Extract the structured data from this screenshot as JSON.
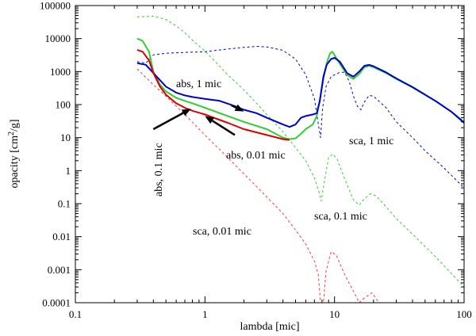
{
  "chart_data": {
    "type": "line",
    "title": "",
    "xlabel": "lambda [mic]",
    "ylabel_parts": [
      "opacity [cm",
      "2",
      "/g]"
    ],
    "xscale": "log",
    "yscale": "log",
    "xlim": [
      0.1,
      100
    ],
    "ylim": [
      0.0001,
      100000
    ],
    "x_ticks": [
      0.1,
      1,
      10,
      100
    ],
    "x_tick_labels": [
      "0.1",
      "1",
      "10",
      "100"
    ],
    "y_ticks": [
      0.0001,
      0.001,
      0.01,
      0.1,
      1,
      10,
      100,
      1000,
      10000,
      100000
    ],
    "y_tick_labels": [
      "0.0001",
      "0.001",
      "0.01",
      "0.1",
      "1",
      "10",
      "100",
      "1000",
      "10000",
      "100000"
    ],
    "grid": false,
    "series": [
      {
        "name": "sca, 1 mic",
        "style": "dashed",
        "color": "#0000cc",
        "points": [
          [
            0.3,
            2000
          ],
          [
            0.35,
            1800
          ],
          [
            0.4,
            3200
          ],
          [
            0.5,
            3600
          ],
          [
            0.7,
            3800
          ],
          [
            1,
            4000
          ],
          [
            1.5,
            4800
          ],
          [
            2,
            5400
          ],
          [
            2.5,
            5800
          ],
          [
            3,
            5600
          ],
          [
            4,
            4400
          ],
          [
            5,
            2400
          ],
          [
            6,
            800
          ],
          [
            7,
            150
          ],
          [
            7.5,
            25
          ],
          [
            7.8,
            10
          ],
          [
            8.1,
            80
          ],
          [
            8.6,
            350
          ],
          [
            9.4,
            700
          ],
          [
            10,
            800
          ],
          [
            11,
            950
          ],
          [
            12,
            950
          ],
          [
            13,
            500
          ],
          [
            14,
            180
          ],
          [
            15,
            90
          ],
          [
            16,
            70
          ],
          [
            17,
            120
          ],
          [
            18.5,
            190
          ],
          [
            20,
            180
          ],
          [
            25,
            80
          ],
          [
            30,
            30
          ],
          [
            40,
            10
          ],
          [
            50,
            4
          ],
          [
            70,
            1.2
          ],
          [
            100,
            0.3
          ]
        ]
      },
      {
        "name": "sca, 0.1 mic",
        "style": "dashed",
        "color": "#33cc33",
        "points": [
          [
            0.3,
            45000
          ],
          [
            0.4,
            48000
          ],
          [
            0.5,
            38000
          ],
          [
            0.6,
            24000
          ],
          [
            0.7,
            15000
          ],
          [
            0.8,
            9000
          ],
          [
            1,
            4200
          ],
          [
            1.2,
            2000
          ],
          [
            1.5,
            800
          ],
          [
            2,
            280
          ],
          [
            2.5,
            110
          ],
          [
            3,
            50
          ],
          [
            4,
            15
          ],
          [
            5,
            5
          ],
          [
            6,
            2
          ],
          [
            7,
            0.6
          ],
          [
            7.6,
            0.22
          ],
          [
            7.9,
            0.12
          ],
          [
            8.3,
            0.4
          ],
          [
            9,
            2.5
          ],
          [
            9.7,
            3.2
          ],
          [
            10.5,
            2.2
          ],
          [
            12,
            0.55
          ],
          [
            14,
            0.13
          ],
          [
            15.5,
            0.09
          ],
          [
            17,
            0.14
          ],
          [
            19,
            0.2
          ],
          [
            21,
            0.17
          ],
          [
            25,
            0.08
          ],
          [
            30,
            0.035
          ],
          [
            40,
            0.012
          ],
          [
            60,
            0.0025
          ],
          [
            100,
            0.0003
          ]
        ]
      },
      {
        "name": "sca, 0.01 mic",
        "style": "dashed",
        "color": "#ff3333",
        "points": [
          [
            0.3,
            1200
          ],
          [
            0.4,
            400
          ],
          [
            0.5,
            180
          ],
          [
            0.7,
            50
          ],
          [
            1,
            12
          ],
          [
            1.5,
            2.5
          ],
          [
            2,
            0.8
          ],
          [
            3,
            0.16
          ],
          [
            4,
            0.05
          ],
          [
            5,
            0.016
          ],
          [
            6,
            0.006
          ],
          [
            7,
            0.0018
          ],
          [
            7.5,
            0.0007
          ],
          [
            7.8,
            0.0001
          ],
          [
            8.2,
            0.0001
          ],
          [
            8.6,
            0.0009
          ],
          [
            9.4,
            0.0035
          ],
          [
            10.3,
            0.0028
          ],
          [
            12,
            0.0007
          ],
          [
            14,
            0.00022
          ],
          [
            15.5,
            0.0001
          ],
          [
            17,
            0.00014
          ],
          [
            19.5,
            0.0002
          ],
          [
            22,
            0.0001
          ]
        ]
      },
      {
        "name": "abs, 0.1 mic",
        "style": "solid",
        "color": "#33cc33",
        "points": [
          [
            0.3,
            10000
          ],
          [
            0.33,
            8500
          ],
          [
            0.37,
            4000
          ],
          [
            0.4,
            1000
          ],
          [
            0.45,
            400
          ],
          [
            0.5,
            250
          ],
          [
            0.6,
            160
          ],
          [
            0.7,
            130
          ],
          [
            0.8,
            110
          ],
          [
            1,
            80
          ],
          [
            1.5,
            45
          ],
          [
            2,
            30
          ],
          [
            3,
            18
          ],
          [
            4,
            10
          ],
          [
            4.5,
            9
          ],
          [
            5,
            9.5
          ],
          [
            5.5,
            13
          ],
          [
            6,
            18
          ],
          [
            6.8,
            25
          ],
          [
            7.3,
            45
          ],
          [
            7.7,
            130
          ],
          [
            8.2,
            600
          ],
          [
            8.7,
            1800
          ],
          [
            9.2,
            3500
          ],
          [
            9.6,
            4000
          ],
          [
            10.2,
            2800
          ],
          [
            11,
            1700
          ],
          [
            12.5,
            800
          ],
          [
            14,
            600
          ],
          [
            15.5,
            850
          ],
          [
            17,
            1350
          ],
          [
            18.5,
            1500
          ],
          [
            20,
            1350
          ],
          [
            25,
            900
          ],
          [
            30,
            600
          ],
          [
            40,
            330
          ],
          [
            60,
            130
          ],
          [
            80,
            60
          ],
          [
            100,
            30
          ]
        ]
      },
      {
        "name": "abs, 1 mic",
        "style": "solid",
        "color": "#0000cc",
        "points": [
          [
            0.3,
            1800
          ],
          [
            0.35,
            1600
          ],
          [
            0.4,
            900
          ],
          [
            0.45,
            550
          ],
          [
            0.5,
            350
          ],
          [
            0.6,
            230
          ],
          [
            0.7,
            190
          ],
          [
            0.8,
            170
          ],
          [
            1,
            150
          ],
          [
            1.3,
            130
          ],
          [
            1.7,
            90
          ],
          [
            2,
            70
          ],
          [
            2.5,
            55
          ],
          [
            3,
            40
          ],
          [
            4,
            25
          ],
          [
            4.5,
            21
          ],
          [
            5,
            25
          ],
          [
            5.5,
            40
          ],
          [
            6,
            45
          ],
          [
            6.8,
            50
          ],
          [
            7.3,
            55
          ],
          [
            7.7,
            130
          ],
          [
            8.2,
            700
          ],
          [
            8.7,
            1600
          ],
          [
            9.4,
            2400
          ],
          [
            10,
            2600
          ],
          [
            11,
            2000
          ],
          [
            12.5,
            900
          ],
          [
            14,
            700
          ],
          [
            15.5,
            1000
          ],
          [
            17,
            1500
          ],
          [
            18.5,
            1600
          ],
          [
            20,
            1450
          ],
          [
            25,
            950
          ],
          [
            30,
            620
          ],
          [
            40,
            340
          ],
          [
            60,
            130
          ],
          [
            80,
            60
          ],
          [
            100,
            28
          ]
        ]
      },
      {
        "name": "abs, 0.01 mic",
        "style": "solid",
        "color": "#dd0000",
        "points": [
          [
            0.3,
            4500
          ],
          [
            0.33,
            4000
          ],
          [
            0.37,
            2200
          ],
          [
            0.4,
            900
          ],
          [
            0.45,
            350
          ],
          [
            0.5,
            200
          ],
          [
            0.6,
            110
          ],
          [
            0.7,
            80
          ],
          [
            0.8,
            65
          ],
          [
            1,
            50
          ],
          [
            1.5,
            28
          ],
          [
            2,
            18
          ],
          [
            3,
            12
          ],
          [
            4,
            9
          ],
          [
            4.5,
            8.5
          ]
        ]
      }
    ],
    "annotations": [
      {
        "text": "abs, 1 mic",
        "arrow_from": [
          1.6,
          95
        ],
        "arrow_to": [
          2.0,
          62
        ]
      },
      {
        "text": "abs, 0.1 mic",
        "arrow_from": [
          0.4,
          18
        ],
        "arrow_to": [
          0.78,
          75
        ]
      },
      {
        "text": "abs, 0.01 mic",
        "arrow_from": [
          1.7,
          12
        ],
        "arrow_to": [
          1.0,
          45
        ]
      },
      {
        "text": "sca, 1 mic"
      },
      {
        "text": "sca, 0.1 mic"
      },
      {
        "text": "sca, 0.01 mic"
      }
    ]
  }
}
